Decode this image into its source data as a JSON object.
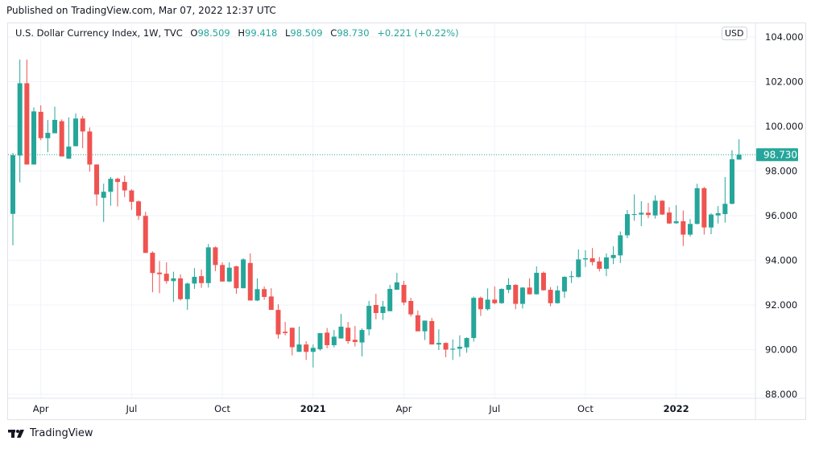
{
  "published": "Published on TradingView.com, Mar 07, 2022 12:37 UTC",
  "legend": {
    "symbol": "U.S. Dollar Currency Index, 1W, TVC",
    "o_label": "O",
    "o": "98.509",
    "h_label": "H",
    "h": "99.418",
    "l_label": "L",
    "l": "98.509",
    "c_label": "C",
    "c": "98.730",
    "change": "+0.221 (+0.22%)"
  },
  "currency": "USD",
  "footer": {
    "brand": "TradingView"
  },
  "colors": {
    "up": "#26a69a",
    "down": "#ef5350",
    "grid": "#f0f3fa",
    "axis_text": "#131722"
  },
  "chart_data": {
    "type": "candlestick",
    "interval": "1W",
    "title": "U.S. Dollar Currency Index, 1W, TVC",
    "ylim": [
      87.6,
      105.5
    ],
    "y_ticks": [
      "88.000",
      "90.000",
      "92.000",
      "94.000",
      "96.000",
      "98.000",
      "100.000",
      "102.000",
      "104.000"
    ],
    "x_ticks": [
      "Apr",
      "Jul",
      "Oct",
      "2021",
      "Apr",
      "Jul",
      "Oct",
      "2022"
    ],
    "last_price": 98.73,
    "last_price_label": "98.730",
    "grid": true,
    "candles_ohlc": [
      [
        96.08,
        98.81,
        94.67,
        98.71
      ],
      [
        98.69,
        102.99,
        97.49,
        101.93
      ],
      [
        101.93,
        102.99,
        98.29,
        98.29
      ],
      [
        98.29,
        100.85,
        98.29,
        100.67
      ],
      [
        100.65,
        100.94,
        99.38,
        99.47
      ],
      [
        99.47,
        100.29,
        98.84,
        99.71
      ],
      [
        99.69,
        100.88,
        99.69,
        100.29
      ],
      [
        100.23,
        100.31,
        98.65,
        98.65
      ],
      [
        98.55,
        100.4,
        98.55,
        99.09
      ],
      [
        99.11,
        100.58,
        99.11,
        100.35
      ],
      [
        100.35,
        100.46,
        99.02,
        99.77
      ],
      [
        99.77,
        99.95,
        97.97,
        98.29
      ],
      [
        98.29,
        98.3,
        96.44,
        96.95
      ],
      [
        96.8,
        97.43,
        95.72,
        97.07
      ],
      [
        97.07,
        97.73,
        96.44,
        97.65
      ],
      [
        97.65,
        97.7,
        96.41,
        97.51
      ],
      [
        97.51,
        97.79,
        96.83,
        97.13
      ],
      [
        97.13,
        97.18,
        96.26,
        96.62
      ],
      [
        96.64,
        96.68,
        95.81,
        95.99
      ],
      [
        95.99,
        96.17,
        94.33,
        94.33
      ],
      [
        94.34,
        94.4,
        92.57,
        93.43
      ],
      [
        93.45,
        93.97,
        92.53,
        93.38
      ],
      [
        93.4,
        93.91,
        92.95,
        93.07
      ],
      [
        93.07,
        93.49,
        92.14,
        93.19
      ],
      [
        93.19,
        93.37,
        92.2,
        92.26
      ],
      [
        92.26,
        93.0,
        91.78,
        92.96
      ],
      [
        92.96,
        93.65,
        92.72,
        93.26
      ],
      [
        93.29,
        93.59,
        92.77,
        92.98
      ],
      [
        92.98,
        94.73,
        92.78,
        94.58
      ],
      [
        94.58,
        94.62,
        93.52,
        93.79
      ],
      [
        93.79,
        93.91,
        93.05,
        93.05
      ],
      [
        93.05,
        93.91,
        93.02,
        93.67
      ],
      [
        93.73,
        93.76,
        92.5,
        92.75
      ],
      [
        92.75,
        94.09,
        92.75,
        94.04
      ],
      [
        93.88,
        94.31,
        92.2,
        92.2
      ],
      [
        92.2,
        93.19,
        92.17,
        92.71
      ],
      [
        92.71,
        92.83,
        92.23,
        92.36
      ],
      [
        92.38,
        92.75,
        91.78,
        91.78
      ],
      [
        91.78,
        92.03,
        90.49,
        90.68
      ],
      [
        90.8,
        91.24,
        90.64,
        90.74
      ],
      [
        90.98,
        90.98,
        89.74,
        90.11
      ],
      [
        89.9,
        91.03,
        89.9,
        90.23
      ],
      [
        90.23,
        90.38,
        89.54,
        89.9
      ],
      [
        89.9,
        90.23,
        89.2,
        90.08
      ],
      [
        90.02,
        90.74,
        89.95,
        90.74
      ],
      [
        90.76,
        90.97,
        90.06,
        90.2
      ],
      [
        90.2,
        90.88,
        90.1,
        90.58
      ],
      [
        90.5,
        91.6,
        90.5,
        91.03
      ],
      [
        90.98,
        91.24,
        90.26,
        90.38
      ],
      [
        90.44,
        91.06,
        90.14,
        90.34
      ],
      [
        90.32,
        90.95,
        89.7,
        90.88
      ],
      [
        90.91,
        92.18,
        90.64,
        91.96
      ],
      [
        92.0,
        92.5,
        91.36,
        91.64
      ],
      [
        91.64,
        92.18,
        91.33,
        91.93
      ],
      [
        91.72,
        92.9,
        91.72,
        92.72
      ],
      [
        92.68,
        93.44,
        92.68,
        93.01
      ],
      [
        92.9,
        93.08,
        91.99,
        92.11
      ],
      [
        92.18,
        92.32,
        91.48,
        91.58
      ],
      [
        91.54,
        91.75,
        90.82,
        90.82
      ],
      [
        90.82,
        91.3,
        90.43,
        91.3
      ],
      [
        91.28,
        91.42,
        90.23,
        90.23
      ],
      [
        90.23,
        90.91,
        89.98,
        90.3
      ],
      [
        90.3,
        90.32,
        89.66,
        90.0
      ],
      [
        90.0,
        90.46,
        89.54,
        90.04
      ],
      [
        90.04,
        90.64,
        89.68,
        90.13
      ],
      [
        90.1,
        90.55,
        89.86,
        90.52
      ],
      [
        90.52,
        92.38,
        90.36,
        92.32
      ],
      [
        92.32,
        92.38,
        91.51,
        91.81
      ],
      [
        91.81,
        92.74,
        91.75,
        92.24
      ],
      [
        92.24,
        92.83,
        92.03,
        92.08
      ],
      [
        92.08,
        92.74,
        92.05,
        92.72
      ],
      [
        92.68,
        93.2,
        92.53,
        92.9
      ],
      [
        92.9,
        92.93,
        91.81,
        92.05
      ],
      [
        92.05,
        92.8,
        91.84,
        92.78
      ],
      [
        92.78,
        93.19,
        92.46,
        92.48
      ],
      [
        92.48,
        93.73,
        92.46,
        93.44
      ],
      [
        93.44,
        93.5,
        92.64,
        92.66
      ],
      [
        92.68,
        92.8,
        91.94,
        92.08
      ],
      [
        92.08,
        92.86,
        92.06,
        92.65
      ],
      [
        92.6,
        93.28,
        92.32,
        93.26
      ],
      [
        93.25,
        93.52,
        92.98,
        93.29
      ],
      [
        93.25,
        94.49,
        93.23,
        94.04
      ],
      [
        94.04,
        94.45,
        93.7,
        94.09
      ],
      [
        94.09,
        94.55,
        93.77,
        93.92
      ],
      [
        93.95,
        94.15,
        93.5,
        93.62
      ],
      [
        93.62,
        94.31,
        93.29,
        94.13
      ],
      [
        94.1,
        94.63,
        93.83,
        94.24
      ],
      [
        94.22,
        95.29,
        93.88,
        95.12
      ],
      [
        95.12,
        96.25,
        94.99,
        96.07
      ],
      [
        96.05,
        96.95,
        95.77,
        96.07
      ],
      [
        96.05,
        96.65,
        95.53,
        96.13
      ],
      [
        96.13,
        96.57,
        95.89,
        96.03
      ],
      [
        96.01,
        96.91,
        95.87,
        96.67
      ],
      [
        96.67,
        96.69,
        96.03,
        96.05
      ],
      [
        96.14,
        96.38,
        95.63,
        95.65
      ],
      [
        95.66,
        96.47,
        95.64,
        95.75
      ],
      [
        95.75,
        96.23,
        94.64,
        95.15
      ],
      [
        95.15,
        95.85,
        95.06,
        95.63
      ],
      [
        95.63,
        97.43,
        95.61,
        97.23
      ],
      [
        97.23,
        97.29,
        95.15,
        95.47
      ],
      [
        95.47,
        96.11,
        95.17,
        96.05
      ],
      [
        96.01,
        96.43,
        95.65,
        96.11
      ],
      [
        96.07,
        97.73,
        95.69,
        96.53
      ],
      [
        96.53,
        98.93,
        96.51,
        98.53
      ],
      [
        98.509,
        99.418,
        98.509,
        98.73
      ]
    ]
  }
}
